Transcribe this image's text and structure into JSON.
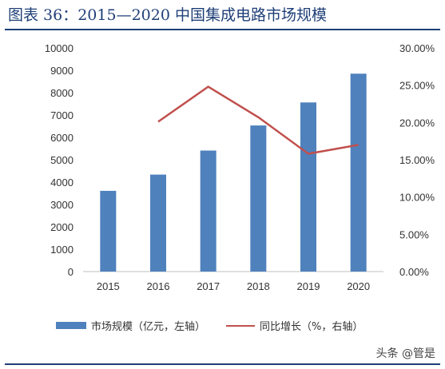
{
  "title": "图表 36：2015—2020 中国集成电路市场规模",
  "watermark": "头条 @管是",
  "colors": {
    "bar": "#4f81bd",
    "line": "#c0504d",
    "title": "#1f3f78"
  },
  "chart_data": {
    "type": "bar",
    "categories": [
      "2015",
      "2016",
      "2017",
      "2018",
      "2019",
      "2020"
    ],
    "series": [
      {
        "name": "市场规模（亿元，左轴）",
        "type": "bar",
        "axis": "left",
        "values": [
          3609,
          4336,
          5411,
          6532,
          7562,
          8848
        ]
      },
      {
        "name": "同比增长（%，右轴）",
        "type": "line",
        "axis": "right",
        "values": [
          null,
          20.1,
          24.8,
          20.7,
          15.8,
          17.0
        ]
      }
    ],
    "left_axis": {
      "min": 0,
      "max": 10000,
      "step": 1000,
      "tick_labels": [
        "0",
        "1000",
        "2000",
        "3000",
        "4000",
        "5000",
        "6000",
        "7000",
        "8000",
        "9000",
        "10000"
      ]
    },
    "right_axis": {
      "min": 0,
      "max": 30,
      "step": 5,
      "tick_labels": [
        "0.00%",
        "5.00%",
        "10.00%",
        "15.00%",
        "20.00%",
        "25.00%",
        "30.00%"
      ]
    },
    "legend_position": "bottom",
    "grid": false
  }
}
